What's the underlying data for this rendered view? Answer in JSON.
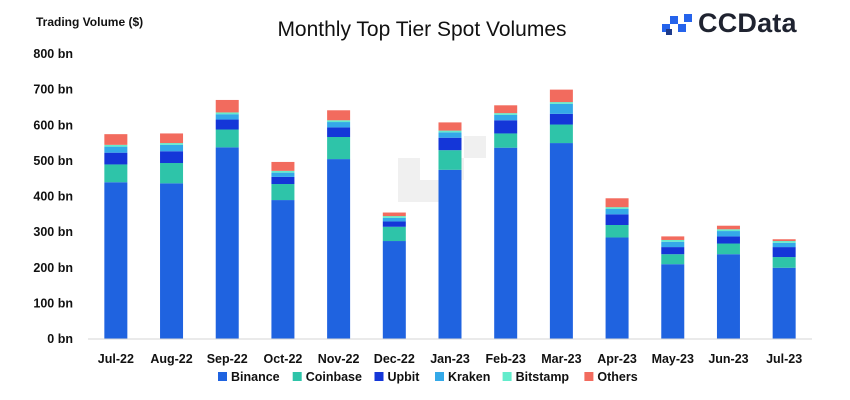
{
  "brand": {
    "name": "CCData",
    "color": "#2563eb"
  },
  "chart_data": {
    "type": "bar",
    "stacked": true,
    "title": "Monthly Top Tier Spot Volumes",
    "ylabel": "Trading Volume ($)",
    "xlabel": "",
    "ylim": [
      0,
      800
    ],
    "yticks": [
      0,
      100,
      200,
      300,
      400,
      500,
      600,
      700,
      800
    ],
    "ytick_labels": [
      "0 bn",
      "100 bn",
      "200 bn",
      "300 bn",
      "400 bn",
      "500 bn",
      "600 bn",
      "700 bn",
      "800 bn"
    ],
    "grid": false,
    "legend_position": "bottom",
    "categories": [
      "Jul-22",
      "Aug-22",
      "Sep-22",
      "Oct-22",
      "Nov-22",
      "Dec-22",
      "Jan-23",
      "Feb-23",
      "Mar-23",
      "Apr-23",
      "May-23",
      "Jun-23",
      "Jul-23"
    ],
    "series": [
      {
        "name": "Binance",
        "color": "#1f63e0",
        "values": [
          440,
          437,
          538,
          390,
          505,
          275,
          475,
          537,
          550,
          285,
          210,
          238,
          200
        ]
      },
      {
        "name": "Coinbase",
        "color": "#2ec4a9",
        "values": [
          50,
          57,
          50,
          45,
          62,
          40,
          55,
          40,
          52,
          35,
          28,
          30,
          30
        ]
      },
      {
        "name": "Upbit",
        "color": "#1436d8",
        "values": [
          33,
          33,
          28,
          20,
          27,
          15,
          35,
          37,
          30,
          30,
          20,
          20,
          28
        ]
      },
      {
        "name": "Kraken",
        "color": "#34a9e8",
        "values": [
          17,
          18,
          15,
          12,
          15,
          10,
          15,
          15,
          28,
          15,
          15,
          15,
          12
        ]
      },
      {
        "name": "Bitstamp",
        "color": "#63eccc",
        "values": [
          5,
          5,
          5,
          5,
          5,
          5,
          5,
          5,
          5,
          5,
          5,
          5,
          5
        ]
      },
      {
        "name": "Others",
        "color": "#f26b5e",
        "values": [
          30,
          27,
          35,
          25,
          28,
          10,
          23,
          22,
          35,
          25,
          10,
          10,
          5
        ]
      }
    ]
  }
}
